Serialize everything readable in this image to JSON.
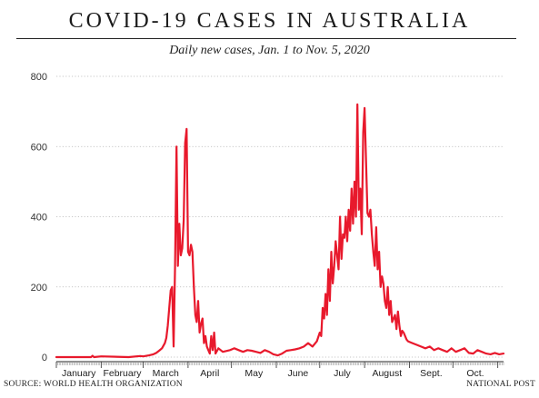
{
  "chart_data": {
    "type": "line",
    "title": "COVID-19 CASES IN AUSTRALIA",
    "subtitle": "Daily new cases, Jan. 1 to Nov. 5, 2020",
    "xlabel": "",
    "ylabel": "",
    "ylim": [
      0,
      800
    ],
    "yticks": [
      0,
      200,
      400,
      600,
      800
    ],
    "grid": true,
    "legend": "none",
    "line_color": "#e8192c",
    "month_labels": [
      "January",
      "February",
      "March",
      "April",
      "May",
      "June",
      "July",
      "August",
      "Sept.",
      "Oct."
    ],
    "series": [
      {
        "x": [
          "2020-01-01",
          "2020-01-25",
          "2020-01-26",
          "2020-01-27",
          "2020-02-01",
          "2020-02-20",
          "2020-02-28",
          "2020-03-01",
          "2020-03-05",
          "2020-03-08",
          "2020-03-10",
          "2020-03-12",
          "2020-03-14",
          "2020-03-16",
          "2020-03-17",
          "2020-03-18",
          "2020-03-19",
          "2020-03-20",
          "2020-03-21",
          "2020-03-22",
          "2020-03-23",
          "2020-03-24",
          "2020-03-25",
          "2020-03-26",
          "2020-03-27",
          "2020-03-28",
          "2020-03-29",
          "2020-03-30",
          "2020-03-31",
          "2020-04-01",
          "2020-04-02",
          "2020-04-03",
          "2020-04-04",
          "2020-04-05",
          "2020-04-06",
          "2020-04-07",
          "2020-04-08",
          "2020-04-09",
          "2020-04-10",
          "2020-04-11",
          "2020-04-12",
          "2020-04-13",
          "2020-04-14",
          "2020-04-15",
          "2020-04-16",
          "2020-04-17",
          "2020-04-18",
          "2020-04-19",
          "2020-04-20",
          "2020-04-22",
          "2020-04-25",
          "2020-04-30",
          "2020-05-03",
          "2020-05-06",
          "2020-05-09",
          "2020-05-12",
          "2020-05-15",
          "2020-05-18",
          "2020-05-21",
          "2020-05-24",
          "2020-05-27",
          "2020-05-30",
          "2020-06-02",
          "2020-06-05",
          "2020-06-08",
          "2020-06-11",
          "2020-06-14",
          "2020-06-17",
          "2020-06-20",
          "2020-06-23",
          "2020-06-26",
          "2020-06-29",
          "2020-07-01",
          "2020-07-02",
          "2020-07-03",
          "2020-07-04",
          "2020-07-05",
          "2020-07-06",
          "2020-07-07",
          "2020-07-08",
          "2020-07-09",
          "2020-07-10",
          "2020-07-11",
          "2020-07-12",
          "2020-07-13",
          "2020-07-14",
          "2020-07-15",
          "2020-07-16",
          "2020-07-17",
          "2020-07-18",
          "2020-07-19",
          "2020-07-20",
          "2020-07-21",
          "2020-07-22",
          "2020-07-23",
          "2020-07-24",
          "2020-07-25",
          "2020-07-26",
          "2020-07-27",
          "2020-07-28",
          "2020-07-29",
          "2020-07-30",
          "2020-07-31",
          "2020-08-01",
          "2020-08-02",
          "2020-08-03",
          "2020-08-04",
          "2020-08-05",
          "2020-08-06",
          "2020-08-07",
          "2020-08-08",
          "2020-08-09",
          "2020-08-10",
          "2020-08-11",
          "2020-08-12",
          "2020-08-13",
          "2020-08-14",
          "2020-08-15",
          "2020-08-16",
          "2020-08-17",
          "2020-08-18",
          "2020-08-19",
          "2020-08-20",
          "2020-08-21",
          "2020-08-22",
          "2020-08-23",
          "2020-08-24",
          "2020-08-25",
          "2020-08-26",
          "2020-08-27",
          "2020-08-28",
          "2020-08-29",
          "2020-08-30",
          "2020-08-31",
          "2020-09-03",
          "2020-09-06",
          "2020-09-09",
          "2020-09-12",
          "2020-09-15",
          "2020-09-18",
          "2020-09-21",
          "2020-09-24",
          "2020-09-27",
          "2020-09-30",
          "2020-10-03",
          "2020-10-06",
          "2020-10-09",
          "2020-10-12",
          "2020-10-15",
          "2020-10-18",
          "2020-10-21",
          "2020-10-24",
          "2020-10-27",
          "2020-10-30",
          "2020-11-02",
          "2020-11-05"
        ],
        "y": [
          0,
          0,
          4,
          0,
          2,
          0,
          3,
          2,
          5,
          8,
          12,
          18,
          25,
          40,
          55,
          90,
          140,
          190,
          200,
          30,
          260,
          600,
          260,
          380,
          290,
          310,
          390,
          610,
          650,
          300,
          290,
          320,
          300,
          200,
          120,
          100,
          160,
          70,
          95,
          110,
          40,
          60,
          30,
          20,
          10,
          60,
          20,
          70,
          10,
          25,
          15,
          20,
          25,
          20,
          15,
          20,
          18,
          15,
          12,
          20,
          15,
          8,
          5,
          10,
          18,
          20,
          22,
          25,
          30,
          40,
          30,
          45,
          70,
          60,
          140,
          110,
          180,
          120,
          250,
          160,
          300,
          210,
          260,
          330,
          290,
          250,
          400,
          280,
          350,
          340,
          400,
          330,
          420,
          360,
          480,
          380,
          500,
          400,
          720,
          420,
          480,
          350,
          640,
          710,
          560,
          410,
          400,
          420,
          350,
          300,
          260,
          370,
          250,
          300,
          200,
          230,
          210,
          160,
          140,
          200,
          120,
          160,
          100,
          110,
          120,
          80,
          130,
          90,
          60,
          75,
          70,
          60,
          50,
          45,
          40,
          35,
          30,
          25,
          30,
          20,
          25,
          20,
          15,
          25,
          15,
          20,
          25,
          12,
          10,
          20,
          15,
          10,
          8,
          12,
          8,
          10
        ]
      }
    ]
  },
  "footer": {
    "source": "SOURCE: WORLD HEALTH ORGANIZATION",
    "credit": "NATIONAL POST"
  }
}
